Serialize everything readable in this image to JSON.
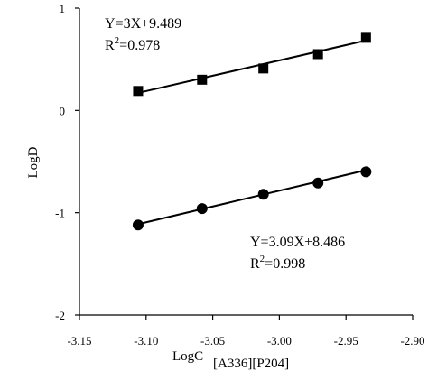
{
  "chart_data": {
    "type": "scatter",
    "title": "",
    "xlabel": "LogC",
    "xlabel_sub": "[A336][P204]",
    "ylabel": "LogD",
    "xlim": [
      -3.15,
      -2.9
    ],
    "ylim": [
      -2,
      1
    ],
    "xticks": [
      -3.15,
      -3.1,
      -3.05,
      -3.0,
      -2.95,
      -2.9
    ],
    "xtick_labels": [
      "-3.15",
      "-3.10",
      "-3.05",
      "-3.00",
      "-2.95",
      "-2.90"
    ],
    "yticks": [
      -2,
      -1,
      0,
      1
    ],
    "ytick_labels": [
      "-2",
      "-1",
      "0",
      "1"
    ],
    "grid": false,
    "series": [
      {
        "marker": "square",
        "color": "#000000",
        "x": [
          -3.106,
          -3.058,
          -3.012,
          -2.971,
          -2.935
        ],
        "y": [
          0.19,
          0.3,
          0.41,
          0.55,
          0.71
        ],
        "fit": {
          "x": [
            -3.106,
            -2.935
          ],
          "y": [
            0.171,
            0.684
          ]
        },
        "annotation": {
          "equation": "Y=3X+9.489",
          "r2_label": "R",
          "r2_sup": "2",
          "r2_value": "=0.978"
        }
      },
      {
        "marker": "circle",
        "color": "#000000",
        "x": [
          -3.106,
          -3.058,
          -3.012,
          -2.971,
          -2.935
        ],
        "y": [
          -1.12,
          -0.96,
          -0.82,
          -0.71,
          -0.6
        ],
        "fit": {
          "x": [
            -3.106,
            -2.935
          ],
          "y": [
            -1.112,
            -0.584
          ]
        },
        "annotation": {
          "equation": "Y=3.09X+8.486",
          "r2_label": "R",
          "r2_sup": "2",
          "r2_value": "=0.998"
        }
      }
    ]
  }
}
